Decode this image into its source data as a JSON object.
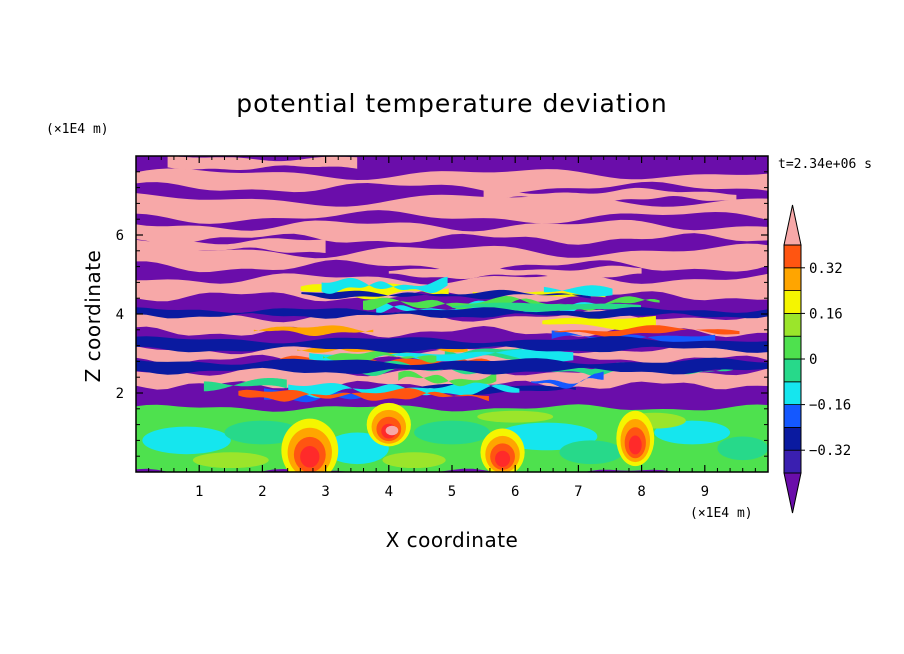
{
  "chart_data": {
    "type": "heatmap",
    "title": "potential temperature deviation",
    "xlabel": "X coordinate",
    "ylabel": "Z coordinate",
    "x_unit": "(×1E4 m)",
    "z_unit": "(×1E4 m)",
    "time_label": "t=2.34e+06 s",
    "xlim": [
      0,
      10
    ],
    "zlim": [
      0,
      8
    ],
    "x_ticks": [
      "1",
      "2",
      "3",
      "4",
      "5",
      "6",
      "7",
      "8",
      "9"
    ],
    "z_ticks": [
      "2",
      "4",
      "6"
    ],
    "colorbar": {
      "tick_labels": [
        "0.32",
        "0.16",
        "0",
        "−0.16",
        "−0.32"
      ],
      "tick_values": [
        0.32,
        0.16,
        0,
        -0.16,
        -0.32
      ],
      "levels": [
        -0.4,
        -0.32,
        -0.24,
        -0.16,
        -0.08,
        0,
        0.08,
        0.16,
        0.24,
        0.32,
        0.4
      ],
      "colors": [
        "#6a0daa",
        "#3a1fb0",
        "#0a1aa0",
        "#1458ff",
        "#15e6ee",
        "#27d98a",
        "#4ee14e",
        "#9be52b",
        "#f5f500",
        "#ffa500",
        "#ff5511",
        "#ff2a2a",
        "#f7a8a8"
      ]
    },
    "field_description_bands": [
      {
        "z_range": [
          0,
          1.7
        ],
        "dominant": "turbulent near-zero field with warm plumes near x=2.7, 4.0, 5.8, 7.9"
      },
      {
        "z_range": [
          1.7,
          5.0
        ],
        "dominant": "alternating warm/cold layers with fine structure"
      },
      {
        "z_range": [
          5.0,
          8.0
        ],
        "dominant": "broad alternating layers of +0.4 (pink) and −0.4 (purple)"
      }
    ]
  }
}
